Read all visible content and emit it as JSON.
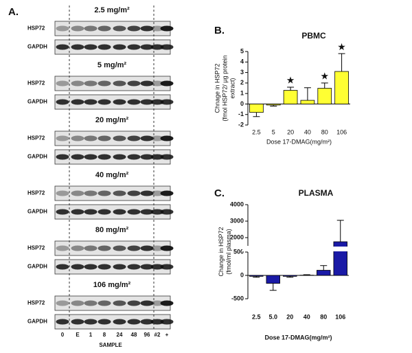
{
  "panel_a": {
    "label": "A.",
    "blocks": [
      {
        "dose": "2.5 mg/m²",
        "rows": [
          "HSP72",
          "GAPDH"
        ]
      },
      {
        "dose": "5 mg/m²",
        "rows": [
          "HSP72",
          "GAPDH"
        ]
      },
      {
        "dose": "20 mg/m²",
        "rows": [
          "HSP72",
          "GAPDH"
        ]
      },
      {
        "dose": "40 mg/m²",
        "rows": [
          "HSP72",
          "GAPDH"
        ]
      },
      {
        "dose": "80 mg/m²",
        "rows": [
          "HSP72",
          "GAPDH"
        ]
      },
      {
        "dose": "106 mg/m²",
        "rows": [
          "HSP72",
          "GAPDH"
        ]
      }
    ],
    "lanes": [
      "0",
      "E",
      "1",
      "8",
      "24",
      "48",
      "96",
      "#2",
      "+"
    ],
    "xlabel": "SAMPLE"
  },
  "chart_data": [
    {
      "type": "bar",
      "label": "B.",
      "title": "PBMC",
      "ylabel": [
        "Chnage in HSP72",
        "(fmol HSP72/  µg protein",
        "extract)"
      ],
      "xlabel": "Dose 17-DMAG(mg/m²)",
      "categories": [
        "2.5",
        "5",
        "20",
        "40",
        "80",
        "106"
      ],
      "values": [
        -0.8,
        -0.1,
        1.3,
        0.35,
        1.5,
        3.1
      ],
      "errors": [
        0.4,
        0.1,
        0.3,
        1.2,
        0.5,
        1.7
      ],
      "color": "#ffff33",
      "ylim": [
        -2,
        5
      ],
      "yticks": [
        -2,
        -1,
        0,
        1,
        2,
        3,
        4,
        5
      ],
      "annotations": [
        {
          "text": "★",
          "category": "20"
        },
        {
          "text": "★",
          "category": "80"
        },
        {
          "text": "★",
          "category": "106"
        }
      ]
    },
    {
      "type": "bar",
      "label": "C.",
      "title": "PLASMA",
      "ylabel": [
        "Change in HSP72",
        "(fmol/ml plasma)"
      ],
      "xlabel": "Dose 17-DMAG(mg/m²)",
      "categories": [
        "2.5",
        "5.0",
        "20",
        "40",
        "80",
        "106"
      ],
      "values": [
        -20,
        -170,
        -20,
        5,
        110,
        1750
      ],
      "errors": [
        20,
        150,
        20,
        10,
        100,
        1300
      ],
      "color": "#1a1aa6",
      "ylim": [
        -500,
        4000
      ],
      "ybreak": [
        500,
        1500
      ],
      "yticks": [
        -500,
        0,
        500,
        2000,
        3000,
        4000
      ]
    }
  ]
}
